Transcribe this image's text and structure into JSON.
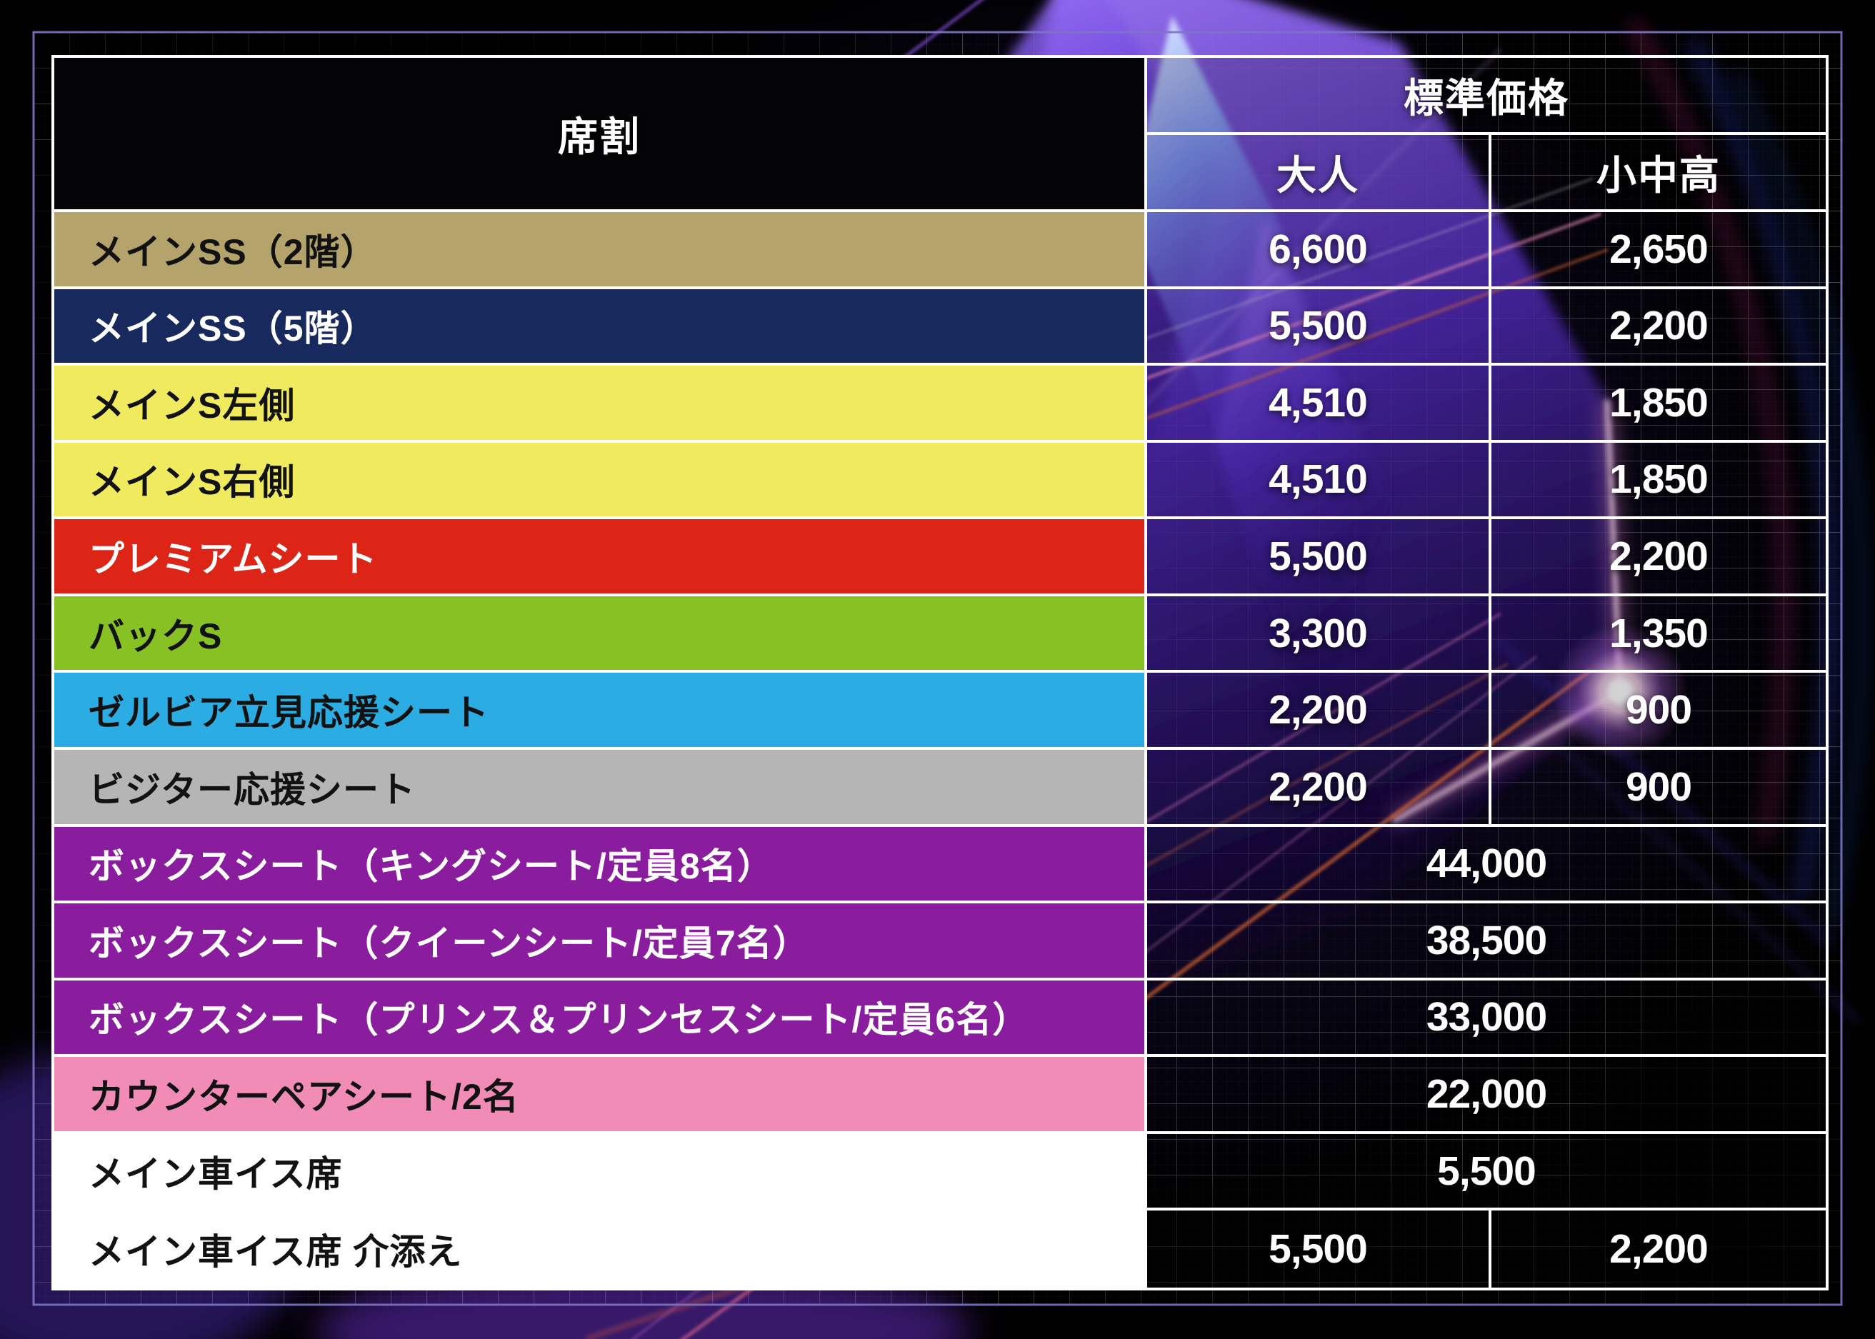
{
  "table": {
    "header": {
      "seat_column": "席割",
      "price_group": "標準価格",
      "sub_adult": "大人",
      "sub_student": "小中高"
    },
    "rows": [
      {
        "label": "メインSS（2階）",
        "adult": "6,600",
        "student": "2,650",
        "bg": "#b4a46c",
        "fg": "#121212"
      },
      {
        "label": "メインSS（5階）",
        "adult": "5,500",
        "student": "2,200",
        "bg": "#18295e",
        "fg": "#ffffff"
      },
      {
        "label": "メインS左側",
        "adult": "4,510",
        "student": "1,850",
        "bg": "#f0ea5e",
        "fg": "#121212"
      },
      {
        "label": "メインS右側",
        "adult": "4,510",
        "student": "1,850",
        "bg": "#f0ea5e",
        "fg": "#121212"
      },
      {
        "label": "プレミアムシート",
        "adult": "5,500",
        "student": "2,200",
        "bg": "#dc2417",
        "fg": "#ffffff"
      },
      {
        "label": "バックS",
        "adult": "3,300",
        "student": "1,350",
        "bg": "#87c124",
        "fg": "#121212"
      },
      {
        "label": "ゼルビア立見応援シート",
        "adult": "2,200",
        "student": "900",
        "bg": "#2bade4",
        "fg": "#121212"
      },
      {
        "label": "ビジター応援シート",
        "adult": "2,200",
        "student": "900",
        "bg": "#b5b5b6",
        "fg": "#121212"
      },
      {
        "label": "ボックスシート（キングシート/定員8名）",
        "merged": "44,000",
        "bg": "#8a1d9d",
        "fg": "#ffffff"
      },
      {
        "label": "ボックスシート（クイーンシート/定員7名）",
        "merged": "38,500",
        "bg": "#8a1d9d",
        "fg": "#ffffff"
      },
      {
        "label": "ボックスシート（プリンス＆プリンセスシート/定員6名）",
        "merged": "33,000",
        "bg": "#8a1d9d",
        "fg": "#ffffff"
      },
      {
        "label": "カウンターペアシート/2名",
        "merged": "22,000",
        "bg": "#f08cb5",
        "fg": "#121212"
      },
      {
        "label": "メイン車イス席",
        "merged": "5,500",
        "bg": "#ffffff",
        "fg": "#121212"
      },
      {
        "label": "メイン車イス席 介添え",
        "adult": "5,500",
        "student": "2,200",
        "bg": "#ffffff",
        "fg": "#121212"
      }
    ],
    "colors": {
      "table_border": "#ffffff",
      "price_text": "#ffffff",
      "grid_line": "#7d76c3",
      "frame_line": "#7b74c4"
    }
  }
}
